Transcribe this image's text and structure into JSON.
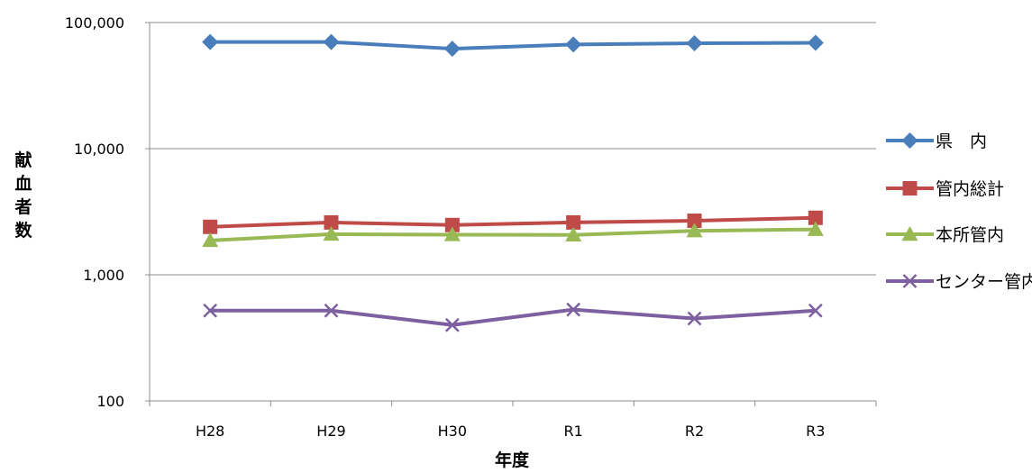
{
  "chart_data": {
    "type": "line",
    "y_scale": "log",
    "categories": [
      "H28",
      "H29",
      "H30",
      "R1",
      "R2",
      "R3"
    ],
    "xlabel": "年度",
    "ylabel": "献血者数",
    "ylim": [
      100,
      100000
    ],
    "yticks": [
      {
        "value": 100,
        "label": "100"
      },
      {
        "value": 1000,
        "label": "1,000"
      },
      {
        "value": 10000,
        "label": "10,000"
      },
      {
        "value": 100000,
        "label": "100,000"
      }
    ],
    "grid": true,
    "legend_position": "right",
    "series": [
      {
        "name": "県　内",
        "color": "#4a7ebb",
        "marker": "diamond",
        "values": [
          70000,
          70000,
          62000,
          67000,
          68500,
          69000
        ]
      },
      {
        "name": "管内総計",
        "color": "#be4b48",
        "marker": "square",
        "values": [
          2400,
          2600,
          2480,
          2600,
          2680,
          2830
        ]
      },
      {
        "name": "本所管内",
        "color": "#98b954",
        "marker": "triangle",
        "values": [
          1870,
          2100,
          2080,
          2070,
          2230,
          2290
        ]
      },
      {
        "name": "センター管内",
        "color": "#7d60a0",
        "marker": "x",
        "values": [
          520,
          520,
          400,
          530,
          450,
          520
        ]
      }
    ]
  }
}
